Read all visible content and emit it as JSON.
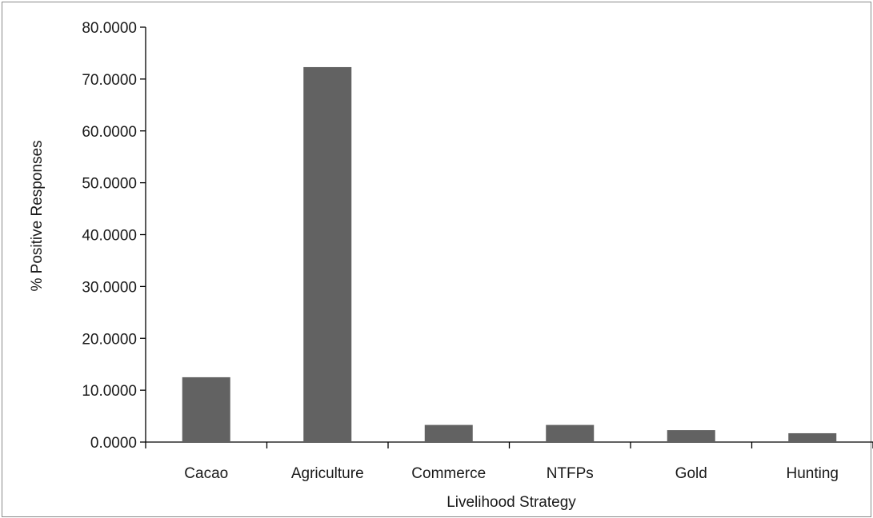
{
  "chart_data": {
    "type": "bar",
    "title": "",
    "xlabel": "Livelihood Strategy",
    "ylabel": "% Positive Responses",
    "categories": [
      "Cacao",
      "Agriculture",
      "Commerce",
      "NTFPs",
      "Gold",
      "Hunting"
    ],
    "values": [
      12.5,
      72.3,
      3.3,
      3.3,
      2.3,
      1.7
    ],
    "ylim": [
      0,
      80
    ],
    "yticks": [
      "0.0000",
      "10.0000",
      "20.0000",
      "30.0000",
      "40.0000",
      "50.0000",
      "60.0000",
      "70.0000",
      "80.0000"
    ],
    "grid": false,
    "legend": "none",
    "bar_color": "#626262"
  }
}
